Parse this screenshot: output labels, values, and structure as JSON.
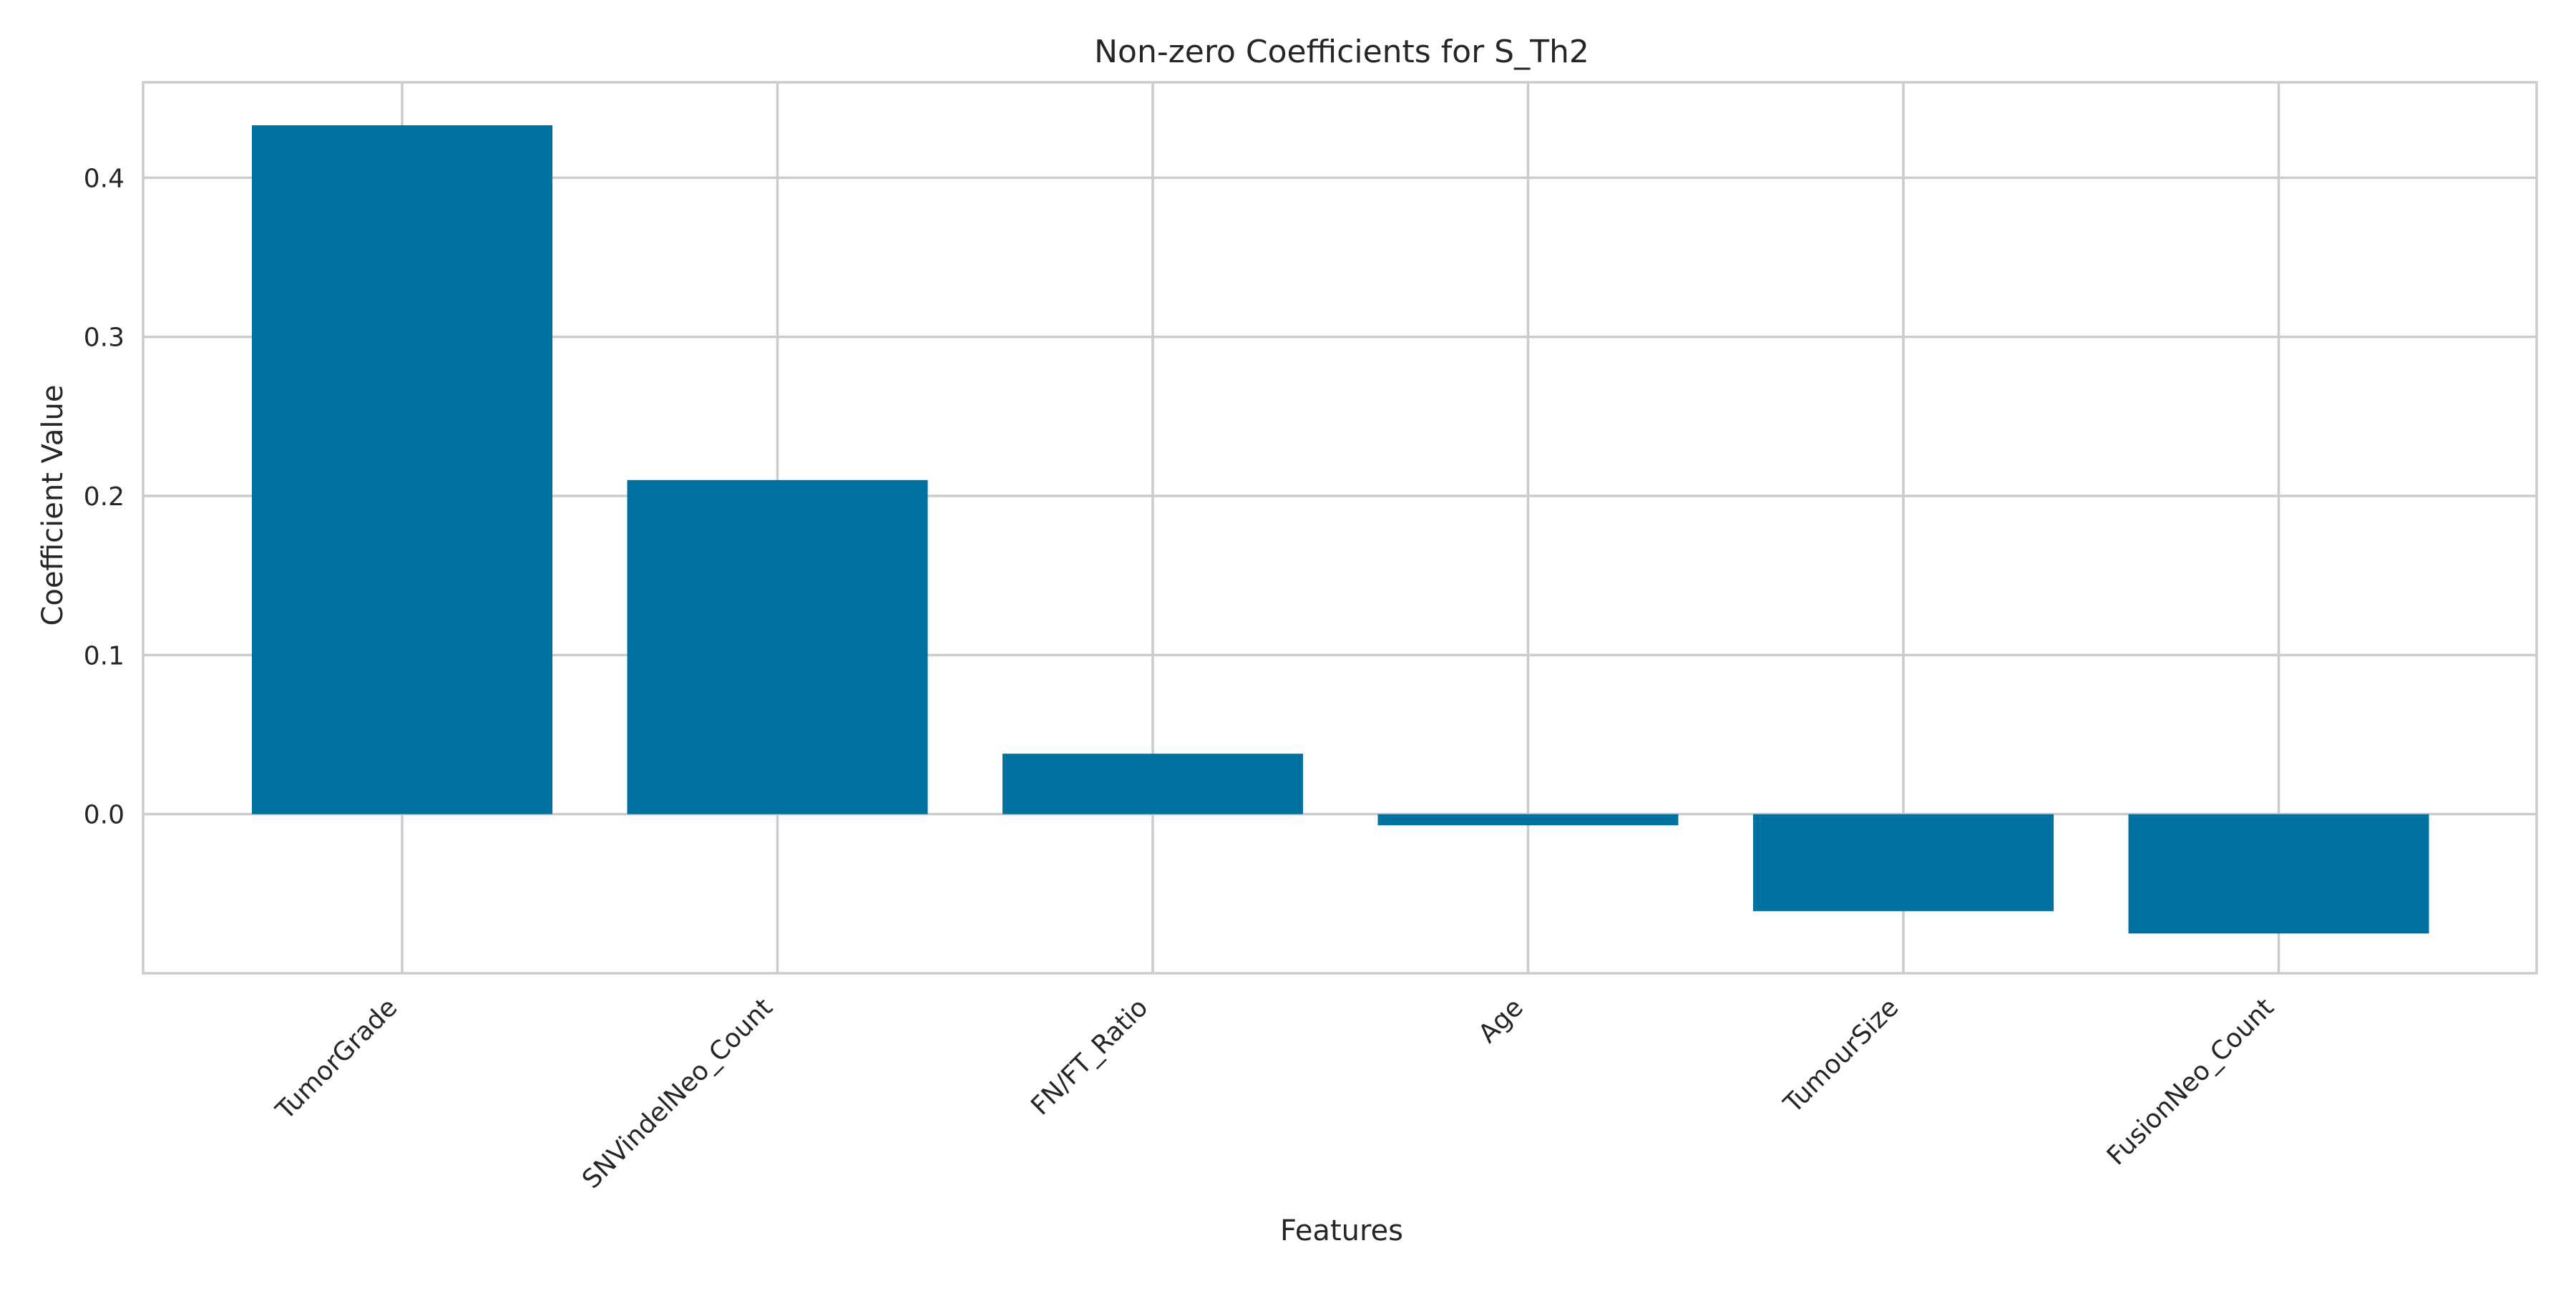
{
  "chart_data": {
    "type": "bar",
    "title": "Non-zero Coefficients for S_Th2",
    "xlabel": "Features",
    "ylabel": "Coefficient Value",
    "categories": [
      "TumorGrade",
      "SNVindelNeo_Count",
      "FN/FT_Ratio",
      "Age",
      "TumourSize",
      "FusionNeo_Count"
    ],
    "values": [
      0.433,
      0.21,
      0.038,
      -0.007,
      -0.061,
      -0.075
    ],
    "yticks": [
      "0.0",
      "0.1",
      "0.2",
      "0.3",
      "0.4"
    ],
    "ylim": [
      -0.1,
      0.46
    ],
    "grid": true,
    "bar_color": "#0072a2",
    "grid_color": "#cccccc"
  }
}
